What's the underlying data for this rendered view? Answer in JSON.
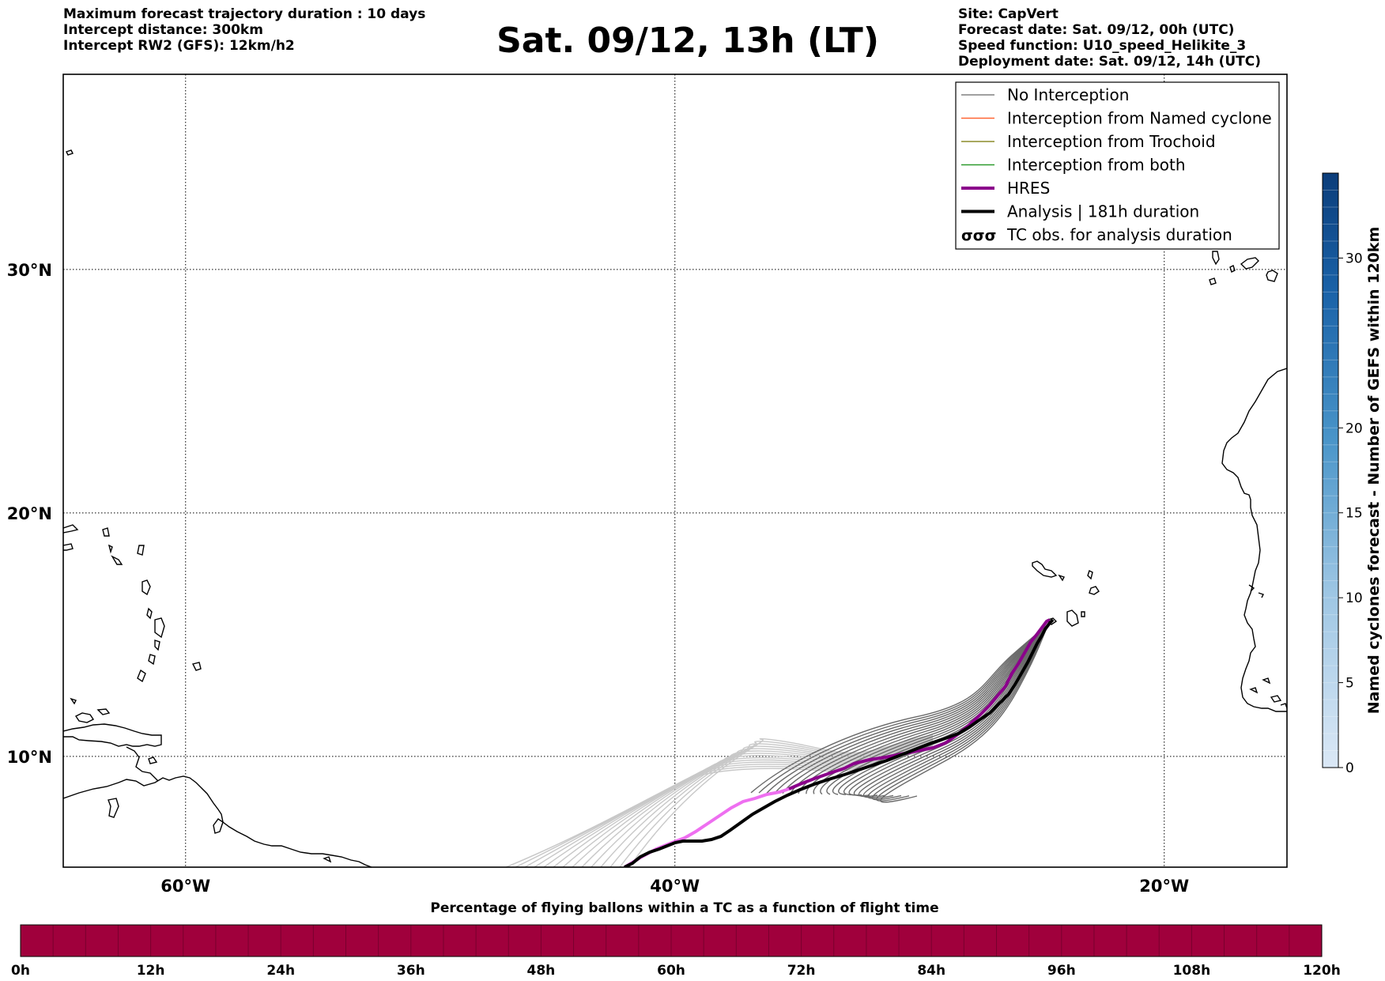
{
  "header": {
    "left_lines": [
      "Maximum forecast trajectory duration : 10 days",
      "Intercept distance: 300km",
      "Intercept RW2 (GFS):  12km/h2"
    ],
    "title": "Sat. 09/12, 13h (LT)",
    "right_lines": [
      "Site: CapVert",
      "Forecast date: Sat. 09/12, 00h (UTC)",
      "Speed function: U10_speed_Helikite_3",
      "Deployment date: Sat. 09/12, 14h (UTC)"
    ]
  },
  "map": {
    "lon_ticks": [
      {
        "lon": -60,
        "label": "60°W"
      },
      {
        "lon": -40,
        "label": "40°W"
      },
      {
        "lon": -20,
        "label": "20°W"
      }
    ],
    "lat_ticks": [
      {
        "lat": 30,
        "label": "30°N"
      },
      {
        "lat": 20,
        "label": "20°N"
      },
      {
        "lat": 10,
        "label": "10°N"
      }
    ],
    "legend": [
      {
        "label": "No Interception",
        "color": "#808080",
        "kind": "thin"
      },
      {
        "label": "Interception from Named cyclone",
        "color": "#ff6633",
        "kind": "thin"
      },
      {
        "label": "Interception from Trochoid",
        "color": "#8b8b2a",
        "kind": "thin"
      },
      {
        "label": "Interception from both",
        "color": "#2e9b2e",
        "kind": "thin"
      },
      {
        "label": "HRES",
        "color": "#8b008b",
        "kind": "thick"
      },
      {
        "label": "Analysis | 181h duration",
        "color": "#000000",
        "kind": "thick"
      },
      {
        "label": "TC obs. for analysis duration",
        "color": "#000000",
        "kind": "symbol"
      }
    ]
  },
  "colorbar_right": {
    "label": "Named cyclones forecast - Number of GEFS within 120km",
    "ticks": [
      "0",
      "5",
      "10",
      "15",
      "20",
      "30"
    ]
  },
  "colorbar_bottom": {
    "title": "Percentage of flying ballons within a TC as a function of flight time",
    "color": "#a0003c",
    "ticks": [
      "0h",
      "12h",
      "24h",
      "36h",
      "48h",
      "60h",
      "72h",
      "84h",
      "96h",
      "108h",
      "120h"
    ]
  }
}
